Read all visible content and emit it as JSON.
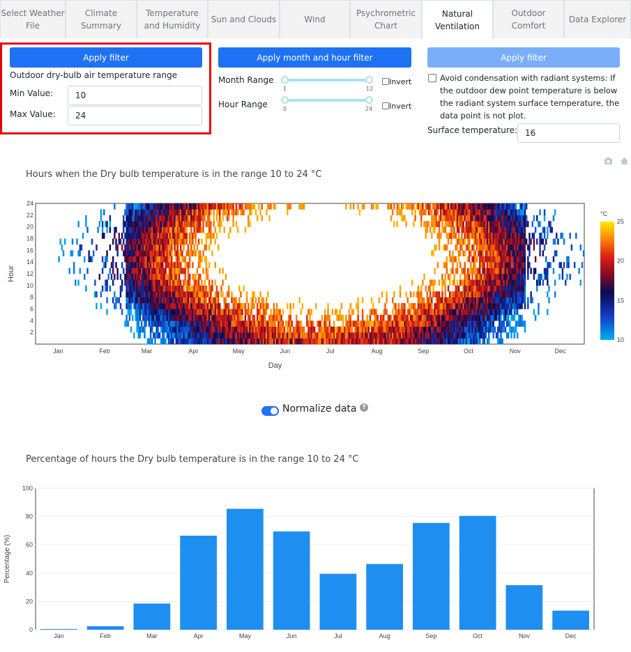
{
  "tabs": [
    {
      "label": "Select Weather\nFile",
      "active": false
    },
    {
      "label": "Climate\nSummary",
      "active": false
    },
    {
      "label": "Temperature\nand Humidity",
      "active": false
    },
    {
      "label": "Sun and Clouds",
      "active": false
    },
    {
      "label": "Wind",
      "active": false
    },
    {
      "label": "Psychrometric\nChart",
      "active": false
    },
    {
      "label": "Natural\nVentilation",
      "active": true
    },
    {
      "label": "Outdoor\nComfort",
      "active": false
    },
    {
      "label": "Data Explorer",
      "active": false
    }
  ],
  "filter_temp": {
    "apply_label": "Apply filter",
    "range_label": "Outdoor dry-bulb air temperature range",
    "min_label": "Min Value:",
    "min_value": "10",
    "max_label": "Max Value:",
    "max_value": "24"
  },
  "filter_time": {
    "apply_label": "Apply month and hour filter",
    "month_label": "Month Range",
    "month_min": "1",
    "month_max": "12",
    "hour_label": "Hour Range",
    "hour_min": "0",
    "hour_max": "24",
    "invert_label": "Invert"
  },
  "filter_condensation": {
    "apply_label": "Apply filter",
    "checkbox_label": "Avoid condensation with radiant systems: If the outdoor dew point temperature is below the radiant system surface temperature, the data point is not plot.",
    "surface_label": "Surface temperature:",
    "surface_value": "16"
  },
  "modebar": {
    "camera_icon": "camera-icon",
    "home_icon": "home-icon"
  },
  "heatmap": {
    "title": "Hours when the Dry bulb temperature is in the range 10 to 24 °C",
    "xlabel": "Day",
    "ylabel": "Hour",
    "colorbar_title": "°C",
    "colorbar_ticks": [
      "25",
      "20",
      "15",
      "10"
    ],
    "month_ticks": [
      "Jan",
      "Feb",
      "Mar",
      "Apr",
      "May",
      "Jun",
      "Jul",
      "Aug",
      "Sep",
      "Oct",
      "Nov",
      "Dec"
    ],
    "hour_ticks": [
      "24",
      "22",
      "20",
      "18",
      "16",
      "14",
      "12",
      "10",
      "8",
      "6",
      "4",
      "2"
    ]
  },
  "normalize": {
    "label": "Normalize data",
    "help": "?",
    "enabled": true
  },
  "chart_data": {
    "type": "bar",
    "title": "Percentage of hours the Dry bulb temperature is in the range 10 to 24 °C",
    "xlabel": "",
    "ylabel": "Percentage (%)",
    "categories": [
      "Jan",
      "Feb",
      "Mar",
      "Apr",
      "May",
      "Jun",
      "Jul",
      "Aug",
      "Sep",
      "Oct",
      "Nov",
      "Dec"
    ],
    "values": [
      0.5,
      2.5,
      18.5,
      66.5,
      85.5,
      69.5,
      39.5,
      46.5,
      75.5,
      80.5,
      31.5,
      13.5
    ],
    "ylim": [
      0,
      100
    ],
    "yticks": [
      "0",
      "20",
      "40",
      "60",
      "80",
      "100"
    ],
    "color": "#1f8ef1"
  }
}
